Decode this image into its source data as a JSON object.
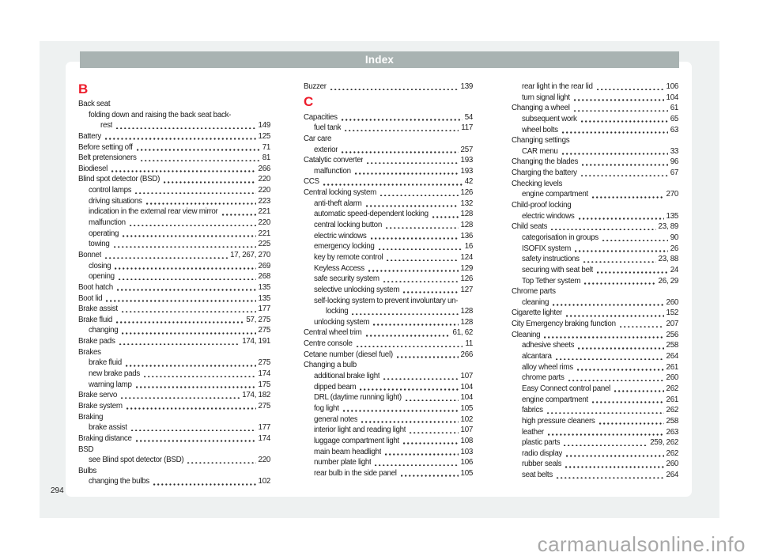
{
  "header": {
    "title": "Index"
  },
  "page": {
    "number": "294",
    "watermark": "carmanualsonline.info"
  },
  "colors": {
    "section_letter_red": "#ed1c2b",
    "header_bar_gray": "#a9b3b2",
    "panel_gray": "#eef1f1",
    "body_text": "#1c1c1c",
    "watermark_gray": "#a8a8a8"
  },
  "columns": [
    {
      "items": [
        {
          "type": "heading",
          "text": "B"
        },
        {
          "type": "entry",
          "text": "Back seat",
          "indent": 0
        },
        {
          "type": "entry",
          "text": "folding down and raising the back seat back-",
          "indent": 1
        },
        {
          "type": "entry",
          "text": "rest",
          "num": "149",
          "indent": 2
        },
        {
          "type": "entry",
          "text": "Battery",
          "num": "125",
          "indent": 0
        },
        {
          "type": "entry",
          "text": "Before setting off",
          "num": "71",
          "indent": 0
        },
        {
          "type": "entry",
          "text": "Belt pretensioners",
          "num": "81",
          "indent": 0
        },
        {
          "type": "entry",
          "text": "Biodiesel",
          "num": "266",
          "indent": 0
        },
        {
          "type": "entry",
          "text": "Blind spot detector (BSD)",
          "num": "220",
          "indent": 0
        },
        {
          "type": "entry",
          "text": "control lamps",
          "num": "220",
          "indent": 1
        },
        {
          "type": "entry",
          "text": "driving situations",
          "num": "223",
          "indent": 1
        },
        {
          "type": "entry",
          "text": "indication in the external rear view mirror",
          "num": "221",
          "indent": 1
        },
        {
          "type": "entry",
          "text": "malfunction",
          "num": "220",
          "indent": 1
        },
        {
          "type": "entry",
          "text": "operating",
          "num": "221",
          "indent": 1
        },
        {
          "type": "entry",
          "text": "towing",
          "num": "225",
          "indent": 1
        },
        {
          "type": "entry",
          "text": "Bonnet",
          "num": "17, 267, 270",
          "indent": 0
        },
        {
          "type": "entry",
          "text": "closing",
          "num": "269",
          "indent": 1
        },
        {
          "type": "entry",
          "text": "opening",
          "num": "268",
          "indent": 1
        },
        {
          "type": "entry",
          "text": "Boot hatch",
          "num": "135",
          "indent": 0
        },
        {
          "type": "entry",
          "text": "Boot lid",
          "num": "135",
          "indent": 0
        },
        {
          "type": "entry",
          "text": "Brake assist",
          "num": "177",
          "indent": 0
        },
        {
          "type": "entry",
          "text": "Brake fluid",
          "num": "57, 275",
          "indent": 0
        },
        {
          "type": "entry",
          "text": "changing",
          "num": "275",
          "indent": 1
        },
        {
          "type": "entry",
          "text": "Brake pads",
          "num": "174, 191",
          "indent": 0
        },
        {
          "type": "entry",
          "text": "Brakes",
          "indent": 0
        },
        {
          "type": "entry",
          "text": "brake fluid",
          "num": "275",
          "indent": 1
        },
        {
          "type": "entry",
          "text": "new brake pads",
          "num": "174",
          "indent": 1
        },
        {
          "type": "entry",
          "text": "warning lamp",
          "num": "175",
          "indent": 1
        },
        {
          "type": "entry",
          "text": "Brake servo",
          "num": "174, 182",
          "indent": 0
        },
        {
          "type": "entry",
          "text": "Brake system",
          "num": "275",
          "indent": 0
        },
        {
          "type": "entry",
          "text": "Braking",
          "indent": 0
        },
        {
          "type": "entry",
          "text": "brake assist",
          "num": "177",
          "indent": 1
        },
        {
          "type": "entry",
          "text": "Braking distance",
          "num": "174",
          "indent": 0
        },
        {
          "type": "entry",
          "text": "BSD",
          "indent": 0
        },
        {
          "type": "entry",
          "text": "see Blind spot detector (BSD)",
          "num": "220",
          "indent": 1
        },
        {
          "type": "entry",
          "text": "Bulbs",
          "indent": 0
        },
        {
          "type": "entry",
          "text": "changing the bulbs",
          "num": "102",
          "indent": 1
        }
      ]
    },
    {
      "items": [
        {
          "type": "entry",
          "text": "Buzzer",
          "num": "139",
          "indent": 0
        },
        {
          "type": "heading",
          "text": "C"
        },
        {
          "type": "entry",
          "text": "Capacities",
          "num": "54",
          "indent": 0
        },
        {
          "type": "entry",
          "text": "fuel tank",
          "num": "117",
          "indent": 1
        },
        {
          "type": "entry",
          "text": "Car care",
          "indent": 0
        },
        {
          "type": "entry",
          "text": "exterior",
          "num": "257",
          "indent": 1
        },
        {
          "type": "entry",
          "text": "Catalytic converter",
          "num": "193",
          "indent": 0
        },
        {
          "type": "entry",
          "text": "malfunction",
          "num": "193",
          "indent": 1
        },
        {
          "type": "entry",
          "text": "CCS",
          "num": "42",
          "indent": 0
        },
        {
          "type": "entry",
          "text": "Central locking system",
          "num": "126",
          "indent": 0
        },
        {
          "type": "entry",
          "text": "anti-theft alarm",
          "num": "132",
          "indent": 1
        },
        {
          "type": "entry",
          "text": "automatic speed-dependent locking",
          "num": "128",
          "indent": 1
        },
        {
          "type": "entry",
          "text": "central locking button",
          "num": "128",
          "indent": 1
        },
        {
          "type": "entry",
          "text": "electric windows",
          "num": "136",
          "indent": 1
        },
        {
          "type": "entry",
          "text": "emergency locking",
          "num": "16",
          "indent": 1
        },
        {
          "type": "entry",
          "text": "key by remote control",
          "num": "124",
          "indent": 1
        },
        {
          "type": "entry",
          "text": "Keyless Access",
          "num": "129",
          "indent": 1
        },
        {
          "type": "entry",
          "text": "safe security system",
          "num": "126",
          "indent": 1
        },
        {
          "type": "entry",
          "text": "selective unlocking system",
          "num": "127",
          "indent": 1
        },
        {
          "type": "entry",
          "text": "self-locking system to prevent involuntary un-",
          "indent": 1
        },
        {
          "type": "entry",
          "text": "locking",
          "num": "128",
          "indent": 2
        },
        {
          "type": "entry",
          "text": "unlocking system",
          "num": "128",
          "indent": 1
        },
        {
          "type": "entry",
          "text": "Central wheel trim",
          "num": "61, 62",
          "indent": 0
        },
        {
          "type": "entry",
          "text": "Centre console",
          "num": "11",
          "indent": 0
        },
        {
          "type": "entry",
          "text": "Cetane number (diesel fuel)",
          "num": "266",
          "indent": 0
        },
        {
          "type": "entry",
          "text": "Changing a bulb",
          "indent": 0
        },
        {
          "type": "entry",
          "text": "additional brake light",
          "num": "107",
          "indent": 1
        },
        {
          "type": "entry",
          "text": "dipped beam",
          "num": "104",
          "indent": 1
        },
        {
          "type": "entry",
          "text": "DRL (daytime running light)",
          "num": "104",
          "indent": 1
        },
        {
          "type": "entry",
          "text": "fog light",
          "num": "105",
          "indent": 1
        },
        {
          "type": "entry",
          "text": "general notes",
          "num": "102",
          "indent": 1
        },
        {
          "type": "entry",
          "text": "interior light and reading light",
          "num": "107",
          "indent": 1
        },
        {
          "type": "entry",
          "text": "luggage compartment light",
          "num": "108",
          "indent": 1
        },
        {
          "type": "entry",
          "text": "main beam headlight",
          "num": "103",
          "indent": 1
        },
        {
          "type": "entry",
          "text": "number plate light",
          "num": "106",
          "indent": 1
        },
        {
          "type": "entry",
          "text": "rear bulb in the side panel",
          "num": "105",
          "indent": 1
        }
      ]
    },
    {
      "items": [
        {
          "type": "entry",
          "text": "rear light in the rear lid",
          "num": "106",
          "indent": 1
        },
        {
          "type": "entry",
          "text": "turn signal light",
          "num": "104",
          "indent": 1
        },
        {
          "type": "entry",
          "text": "Changing a wheel",
          "num": "61",
          "indent": 0
        },
        {
          "type": "entry",
          "text": "subsequent work",
          "num": "65",
          "indent": 1
        },
        {
          "type": "entry",
          "text": "wheel bolts",
          "num": "63",
          "indent": 1
        },
        {
          "type": "entry",
          "text": "Changing settings",
          "indent": 0
        },
        {
          "type": "entry",
          "text": "CAR menu",
          "num": "33",
          "indent": 1
        },
        {
          "type": "entry",
          "text": "Changing the blades",
          "num": "96",
          "indent": 0
        },
        {
          "type": "entry",
          "text": "Charging the battery",
          "num": "67",
          "indent": 0
        },
        {
          "type": "entry",
          "text": "Checking levels",
          "indent": 0
        },
        {
          "type": "entry",
          "text": "engine compartment",
          "num": "270",
          "indent": 1
        },
        {
          "type": "entry",
          "text": "Child-proof locking",
          "indent": 0
        },
        {
          "type": "entry",
          "text": "electric windows",
          "num": "135",
          "indent": 1
        },
        {
          "type": "entry",
          "text": "Child seats",
          "num": "23, 89",
          "indent": 0
        },
        {
          "type": "entry",
          "text": "categorisation in groups",
          "num": "90",
          "indent": 1
        },
        {
          "type": "entry",
          "text": "ISOFIX system",
          "num": "26",
          "indent": 1
        },
        {
          "type": "entry",
          "text": "safety instructions",
          "num": "23, 88",
          "indent": 1
        },
        {
          "type": "entry",
          "text": "securing with seat belt",
          "num": "24",
          "indent": 1
        },
        {
          "type": "entry",
          "text": "Top Tether system",
          "num": "26, 29",
          "indent": 1
        },
        {
          "type": "entry",
          "text": "Chrome parts",
          "indent": 0
        },
        {
          "type": "entry",
          "text": "cleaning",
          "num": "260",
          "indent": 1
        },
        {
          "type": "entry",
          "text": "Cigarette lighter",
          "num": "152",
          "indent": 0
        },
        {
          "type": "entry",
          "text": "City Emergency braking function",
          "num": "207",
          "indent": 0
        },
        {
          "type": "entry",
          "text": "Cleaning",
          "num": "256",
          "indent": 0
        },
        {
          "type": "entry",
          "text": "adhesive sheets",
          "num": "258",
          "indent": 1
        },
        {
          "type": "entry",
          "text": "alcantara",
          "num": "264",
          "indent": 1
        },
        {
          "type": "entry",
          "text": "alloy wheel rims",
          "num": "261",
          "indent": 1
        },
        {
          "type": "entry",
          "text": "chrome parts",
          "num": "260",
          "indent": 1
        },
        {
          "type": "entry",
          "text": "Easy Connect control panel",
          "num": "262",
          "indent": 1
        },
        {
          "type": "entry",
          "text": "engine compartment",
          "num": "261",
          "indent": 1
        },
        {
          "type": "entry",
          "text": "fabrics",
          "num": "262",
          "indent": 1
        },
        {
          "type": "entry",
          "text": "high pressure cleaners",
          "num": "258",
          "indent": 1
        },
        {
          "type": "entry",
          "text": "leather",
          "num": "263",
          "indent": 1
        },
        {
          "type": "entry",
          "text": "plastic parts",
          "num": "259, 262",
          "indent": 1
        },
        {
          "type": "entry",
          "text": "radio display",
          "num": "262",
          "indent": 1
        },
        {
          "type": "entry",
          "text": "rubber seals",
          "num": "260",
          "indent": 1
        },
        {
          "type": "entry",
          "text": "seat belts",
          "num": "264",
          "indent": 1
        }
      ]
    }
  ]
}
